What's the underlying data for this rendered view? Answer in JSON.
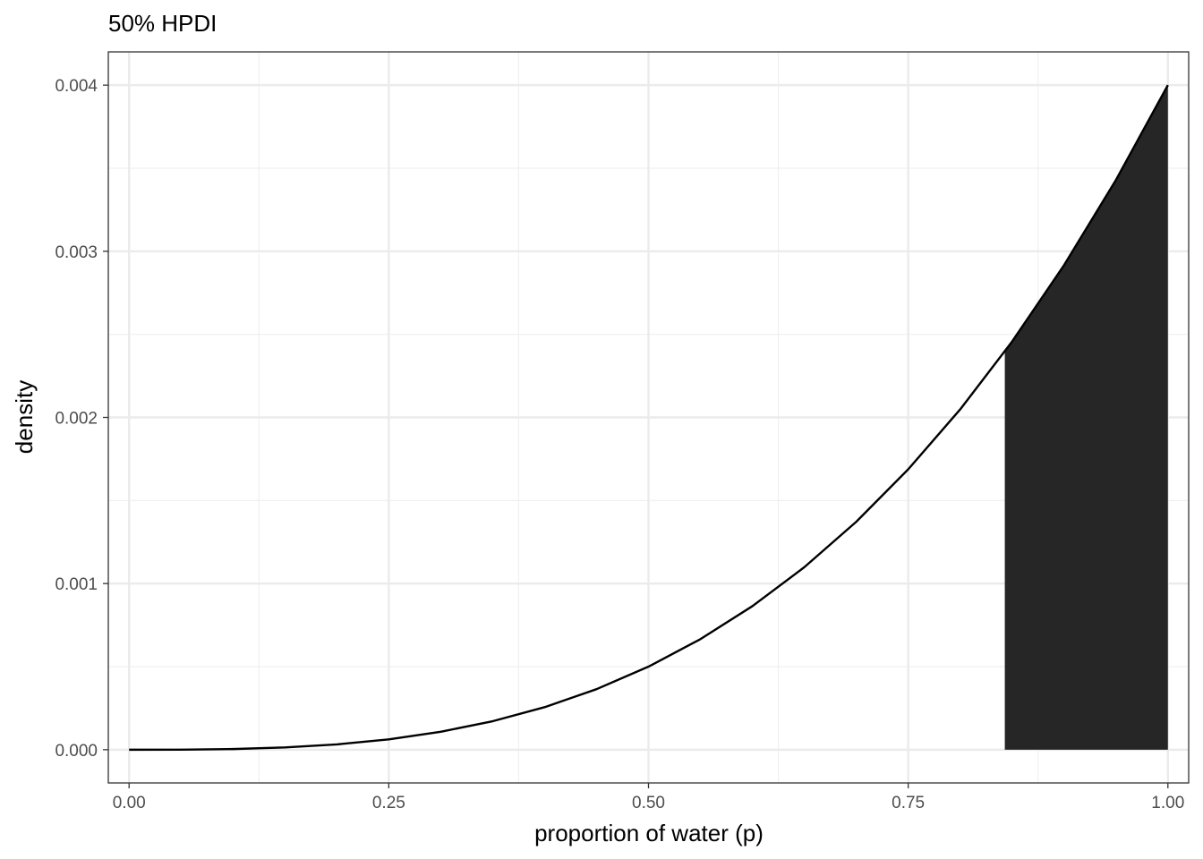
{
  "chart_data": {
    "type": "area",
    "title": "50% HPDI",
    "xlabel": "proportion of water (p)",
    "ylabel": "density",
    "xlim": [
      -0.02,
      1.02
    ],
    "ylim": [
      -0.0002,
      0.0042
    ],
    "x_ticks": [
      0.0,
      0.25,
      0.5,
      0.75,
      1.0
    ],
    "x_tick_labels": [
      "0.00",
      "0.25",
      "0.50",
      "0.75",
      "1.00"
    ],
    "y_ticks": [
      0.0,
      0.001,
      0.002,
      0.003,
      0.004
    ],
    "y_tick_labels": [
      "0.000",
      "0.001",
      "0.002",
      "0.003",
      "0.004"
    ],
    "grid": true,
    "theme": "black-white",
    "series": [
      {
        "type": "line",
        "color": "#000000",
        "x": [
          0.0,
          0.05,
          0.1,
          0.15,
          0.2,
          0.25,
          0.3,
          0.35,
          0.4,
          0.45,
          0.5,
          0.55,
          0.6,
          0.65,
          0.7,
          0.75,
          0.8,
          0.85,
          0.9,
          0.95,
          1.0
        ],
        "y": [
          0.0,
          5e-07,
          4e-06,
          1.35e-05,
          3.2e-05,
          6.25e-05,
          0.000108,
          0.0001715,
          0.000256,
          0.0003645,
          0.0005,
          0.0006655,
          0.000864,
          0.0010985,
          0.001372,
          0.0016875,
          0.002048,
          0.0024565,
          0.002916,
          0.0034295,
          0.004
        ]
      }
    ],
    "shaded_region": {
      "x_from": 0.843,
      "x_to": 1.0,
      "color": "#262626"
    }
  }
}
